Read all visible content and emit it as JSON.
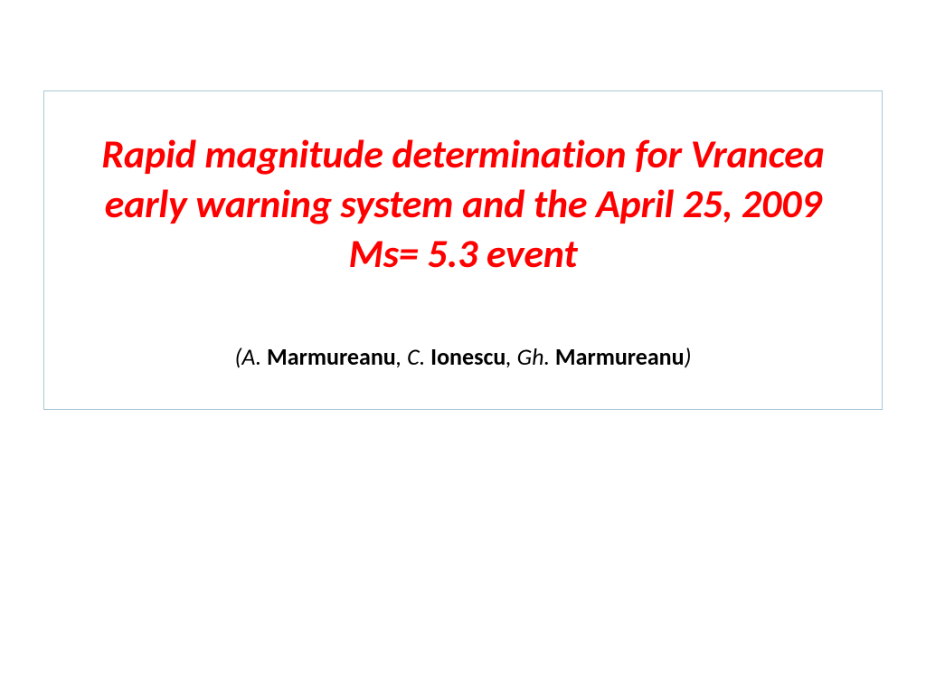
{
  "slide": {
    "title": "Rapid magnitude determination for Vrancea early warning system and the April 25, 2009  Ms= 5.3 event",
    "title_color": "#ff0000",
    "title_fontsize": 44,
    "authors": {
      "open_paren": "(",
      "close_paren": ")",
      "a1_initial": "A. ",
      "a1_surname": "Marmureanu",
      "sep1": ", ",
      "a2_initial": "C. ",
      "a2_surname": "Ionescu",
      "sep2": ", ",
      "a3_initial": "Gh. ",
      "a3_surname": "Marmureanu"
    },
    "authors_color": "#000000",
    "authors_fontsize": 26,
    "border_color": "#a8c8d8",
    "background_color": "#ffffff"
  }
}
